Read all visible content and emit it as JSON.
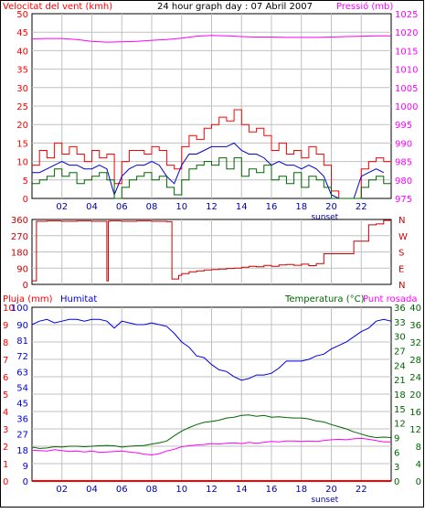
{
  "colors": {
    "speed": "#ff0000",
    "pressure": "#ff00ff",
    "direction": "#cc0000",
    "humidity": "#0000dd",
    "temperature": "#006600",
    "dewpoint": "#ff00ff",
    "rain": "#ff0000",
    "grid": "#c0c0c0",
    "frame": "#000000"
  },
  "chart_data": [
    {
      "type": "line",
      "title": "24 hour graph day : 07 Abril 2007",
      "ylabel": "Velocitat del vent (kmh)",
      "y2label": "Pressió (mb)",
      "xlim": [
        0,
        24
      ],
      "ylim": [
        0,
        50
      ],
      "y2lim": [
        975,
        1025
      ],
      "x_ticks": [
        "02",
        "04",
        "06",
        "08",
        "10",
        "12",
        "14",
        "16",
        "18",
        "20",
        "22"
      ],
      "x_tick_values": [
        2,
        4,
        6,
        8,
        10,
        12,
        14,
        16,
        18,
        20,
        22
      ],
      "x_annotation": "sunset",
      "y_ticks": [
        0,
        5,
        10,
        15,
        20,
        25,
        30,
        35,
        40,
        45,
        50
      ],
      "y2_ticks": [
        975,
        980,
        985,
        990,
        995,
        1000,
        1005,
        1010,
        1015,
        1020,
        1025
      ],
      "grid": true,
      "series": [
        {
          "key": "gust",
          "color": "#ff0000",
          "style": "step",
          "x": [
            0.0,
            0.5,
            1.0,
            1.5,
            2.0,
            2.5,
            3.0,
            3.5,
            4.0,
            4.5,
            5.0,
            5.5,
            6.0,
            6.5,
            7.0,
            7.5,
            8.0,
            8.5,
            9.0,
            9.5,
            10.0,
            10.5,
            11.0,
            11.5,
            12.0,
            12.5,
            13.0,
            13.5,
            14.0,
            14.5,
            15.0,
            15.5,
            16.0,
            16.5,
            17.0,
            17.5,
            18.0,
            18.5,
            19.0,
            19.5,
            20.0,
            20.5,
            21.0,
            21.5,
            22.0,
            22.5,
            23.0,
            23.5
          ],
          "values": [
            9,
            13,
            11,
            15,
            12,
            14,
            12,
            10,
            13,
            11,
            12,
            4,
            10,
            13,
            13,
            12,
            14,
            13,
            9,
            8,
            14,
            17,
            16,
            19,
            20,
            22,
            21,
            24,
            20,
            18,
            19,
            17,
            13,
            15,
            12,
            13,
            11,
            14,
            12,
            9,
            2,
            0,
            0,
            0,
            8,
            10,
            11,
            10
          ]
        },
        {
          "key": "avg",
          "color": "#0000cc",
          "style": "line",
          "x": [
            0.0,
            0.5,
            1.0,
            1.5,
            2.0,
            2.5,
            3.0,
            3.5,
            4.0,
            4.5,
            5.0,
            5.5,
            6.0,
            6.5,
            7.0,
            7.5,
            8.0,
            8.5,
            9.0,
            9.5,
            10.0,
            10.5,
            11.0,
            11.5,
            12.0,
            12.5,
            13.0,
            13.5,
            14.0,
            14.5,
            15.0,
            15.5,
            16.0,
            16.5,
            17.0,
            17.5,
            18.0,
            18.5,
            19.0,
            19.5,
            20.0,
            20.5,
            21.0,
            21.5,
            22.0,
            22.5,
            23.0,
            23.5
          ],
          "values": [
            7,
            7,
            8,
            9,
            10,
            9,
            9,
            8,
            8,
            9,
            8,
            1,
            6,
            8,
            9,
            9,
            10,
            9,
            6,
            4,
            9,
            12,
            12,
            13,
            14,
            14,
            14,
            15,
            13,
            12,
            12,
            11,
            9,
            10,
            9,
            9,
            8,
            9,
            8,
            6,
            1,
            0,
            0,
            0,
            6,
            7,
            8,
            7
          ]
        },
        {
          "key": "min",
          "color": "#006600",
          "style": "step",
          "x": [
            0.0,
            0.5,
            1.0,
            1.5,
            2.0,
            2.5,
            3.0,
            3.5,
            4.0,
            4.5,
            5.0,
            5.5,
            6.0,
            6.5,
            7.0,
            7.5,
            8.0,
            8.5,
            9.0,
            9.5,
            10.0,
            10.5,
            11.0,
            11.5,
            12.0,
            12.5,
            13.0,
            13.5,
            14.0,
            14.5,
            15.0,
            15.5,
            16.0,
            16.5,
            17.0,
            17.5,
            18.0,
            18.5,
            19.0,
            19.5,
            20.0,
            20.5,
            21.0,
            21.5,
            22.0,
            22.5,
            23.0,
            23.5
          ],
          "values": [
            4,
            5,
            6,
            8,
            6,
            7,
            4,
            5,
            6,
            7,
            5,
            0,
            3,
            5,
            6,
            7,
            5,
            6,
            3,
            1,
            5,
            8,
            9,
            10,
            9,
            11,
            8,
            11,
            6,
            8,
            7,
            9,
            5,
            6,
            4,
            7,
            3,
            6,
            5,
            3,
            0,
            0,
            0,
            0,
            3,
            5,
            6,
            4
          ]
        },
        {
          "key": "pressure",
          "color": "#ff00ff",
          "style": "line",
          "axis": "y2",
          "x": [
            0,
            1,
            2,
            3,
            4,
            5,
            6,
            7,
            8,
            9,
            10,
            11,
            12,
            13,
            14,
            15,
            16,
            17,
            18,
            19,
            20,
            21,
            22,
            23,
            24
          ],
          "values": [
            1018.2,
            1018.3,
            1018.3,
            1018.0,
            1017.5,
            1017.3,
            1017.4,
            1017.5,
            1017.8,
            1018.0,
            1018.4,
            1018.9,
            1019.1,
            1019.0,
            1018.8,
            1018.7,
            1018.7,
            1018.6,
            1018.6,
            1018.6,
            1018.7,
            1018.8,
            1018.9,
            1019.0,
            1019.0
          ]
        }
      ]
    },
    {
      "type": "line",
      "ylabel": "",
      "xlim": [
        0,
        24
      ],
      "ylim": [
        0,
        360
      ],
      "y_ticks": [
        0,
        90,
        180,
        270,
        360
      ],
      "y2_labels": [
        "N",
        "W",
        "S",
        "E",
        "N"
      ],
      "grid": true,
      "series": [
        {
          "key": "direction",
          "color": "#cc0000",
          "style": "step",
          "x": [
            0.0,
            0.25,
            0.3,
            1.0,
            2.0,
            3.0,
            4.0,
            4.9,
            5.0,
            5.1,
            5.2,
            6.0,
            7.0,
            8.0,
            9.0,
            9.3,
            9.35,
            9.8,
            10.0,
            10.5,
            11.0,
            11.5,
            12.0,
            12.5,
            13.0,
            13.5,
            14.0,
            14.5,
            15.0,
            15.5,
            16.0,
            16.5,
            17.0,
            17.5,
            18.0,
            18.5,
            19.0,
            19.4,
            19.5,
            20.0,
            21.0,
            21.5,
            22.0,
            22.5,
            23.0,
            23.4,
            23.5,
            24.0
          ],
          "values": [
            20,
            20,
            350,
            352,
            350,
            352,
            350,
            350,
            20,
            350,
            352,
            350,
            352,
            350,
            348,
            348,
            30,
            50,
            60,
            70,
            75,
            80,
            82,
            85,
            88,
            90,
            95,
            100,
            98,
            105,
            100,
            108,
            110,
            106,
            112,
            104,
            115,
            115,
            170,
            170,
            170,
            240,
            240,
            330,
            335,
            335,
            355,
            355
          ]
        }
      ]
    },
    {
      "type": "line",
      "ylabel": "Pluja (mm)",
      "y2label": "Humitat",
      "y3label": "Temperatura (°C)",
      "y4label": "Punt rosada",
      "xlim": [
        0,
        24
      ],
      "ylim": [
        0,
        100
      ],
      "x_ticks": [
        "02",
        "04",
        "06",
        "08",
        "10",
        "12",
        "14",
        "16",
        "18",
        "20",
        "22"
      ],
      "x_tick_values": [
        2,
        4,
        6,
        8,
        10,
        12,
        14,
        16,
        18,
        20,
        22
      ],
      "x_annotation": "sunset",
      "rain_ticks": [
        0,
        1,
        2,
        3,
        4,
        5,
        6,
        7,
        8,
        9,
        10
      ],
      "humidity_ticks": [
        0,
        9,
        18,
        27,
        36,
        45,
        54,
        63,
        72,
        81,
        90,
        100
      ],
      "temp_left_ticks": [
        0,
        3,
        6,
        9,
        12,
        15,
        18,
        21,
        24,
        27,
        30,
        33,
        36
      ],
      "temp_right_ticks": [
        0,
        4,
        8,
        12,
        16,
        20,
        24,
        28,
        32,
        36,
        40
      ],
      "grid": true,
      "series": [
        {
          "key": "humidity",
          "color": "#0000dd",
          "style": "line",
          "x": [
            0,
            0.5,
            1,
            1.5,
            2,
            2.5,
            3,
            3.5,
            4,
            4.5,
            5,
            5.5,
            6,
            6.5,
            7,
            7.5,
            8,
            8.5,
            9,
            9.5,
            10,
            10.5,
            11,
            11.5,
            12,
            12.5,
            13,
            13.5,
            14,
            14.5,
            15,
            15.5,
            16,
            16.5,
            17,
            17.5,
            18,
            18.5,
            19,
            19.5,
            20,
            20.5,
            21,
            21.5,
            22,
            22.5,
            23,
            23.5,
            24
          ],
          "values": [
            90,
            92,
            93,
            91,
            92,
            93,
            93,
            92,
            93,
            93,
            92,
            88,
            92,
            91,
            90,
            90,
            91,
            90,
            89,
            85,
            80,
            77,
            72,
            71,
            67,
            64,
            63,
            60,
            58,
            59,
            61,
            61,
            62,
            65,
            69,
            69,
            69,
            70,
            72,
            73,
            76,
            78,
            80,
            83,
            86,
            88,
            92,
            93,
            92
          ]
        },
        {
          "key": "temperature",
          "color": "#006600",
          "style": "line",
          "axis": "temp",
          "x": [
            0,
            0.5,
            1,
            1.5,
            2,
            2.5,
            3,
            3.5,
            4,
            4.5,
            5,
            5.5,
            6,
            6.5,
            7,
            7.5,
            8,
            8.5,
            9,
            9.5,
            10,
            10.5,
            11,
            11.5,
            12,
            12.5,
            13,
            13.5,
            14,
            14.5,
            15,
            15.5,
            16,
            16.5,
            17,
            17.5,
            18,
            18.5,
            19,
            19.5,
            20,
            20.5,
            21,
            21.5,
            22,
            22.5,
            23,
            23.5,
            24
          ],
          "values": [
            7.8,
            7.5,
            7.6,
            7.9,
            7.8,
            8.0,
            8.0,
            7.9,
            8.0,
            8.1,
            8.2,
            8.1,
            7.8,
            8.0,
            8.1,
            8.2,
            8.5,
            8.8,
            9.2,
            10.4,
            11.5,
            12.3,
            13.0,
            13.5,
            13.7,
            14.0,
            14.5,
            14.7,
            15.1,
            15.2,
            14.9,
            15.1,
            14.7,
            14.8,
            14.6,
            14.5,
            14.5,
            14.3,
            13.8,
            13.6,
            13.0,
            12.5,
            12.0,
            11.3,
            10.8,
            10.3,
            10.0,
            10.1,
            10.0
          ]
        },
        {
          "key": "dewpoint",
          "color": "#ff00ff",
          "style": "line",
          "axis": "temp",
          "x": [
            0,
            0.5,
            1,
            1.5,
            2,
            2.5,
            3,
            3.5,
            4,
            4.5,
            5,
            5.5,
            6,
            6.5,
            7,
            7.5,
            8,
            8.5,
            9,
            9.5,
            10,
            10.5,
            11,
            11.5,
            12,
            12.5,
            13,
            13.5,
            14,
            14.5,
            15,
            15.5,
            16,
            16.5,
            17,
            17.5,
            18,
            18.5,
            19,
            19.5,
            20,
            20.5,
            21,
            21.5,
            22,
            22.5,
            23,
            23.5,
            24
          ],
          "values": [
            7.1,
            7.0,
            6.9,
            7.2,
            7.0,
            6.8,
            6.9,
            6.7,
            6.9,
            6.6,
            6.7,
            6.8,
            6.9,
            6.7,
            6.5,
            6.2,
            6.0,
            6.3,
            6.9,
            7.3,
            7.9,
            8.1,
            8.3,
            8.4,
            8.6,
            8.5,
            8.7,
            8.8,
            8.6,
            8.9,
            8.7,
            8.9,
            9.1,
            9.0,
            9.2,
            9.2,
            9.1,
            9.2,
            9.1,
            9.3,
            9.5,
            9.6,
            9.5,
            9.7,
            9.8,
            9.6,
            9.3,
            9.0,
            9.0
          ]
        },
        {
          "key": "rain",
          "color": "#ff0000",
          "style": "line",
          "axis": "rain",
          "x": [
            0,
            24
          ],
          "values": [
            0,
            0
          ]
        }
      ]
    }
  ]
}
